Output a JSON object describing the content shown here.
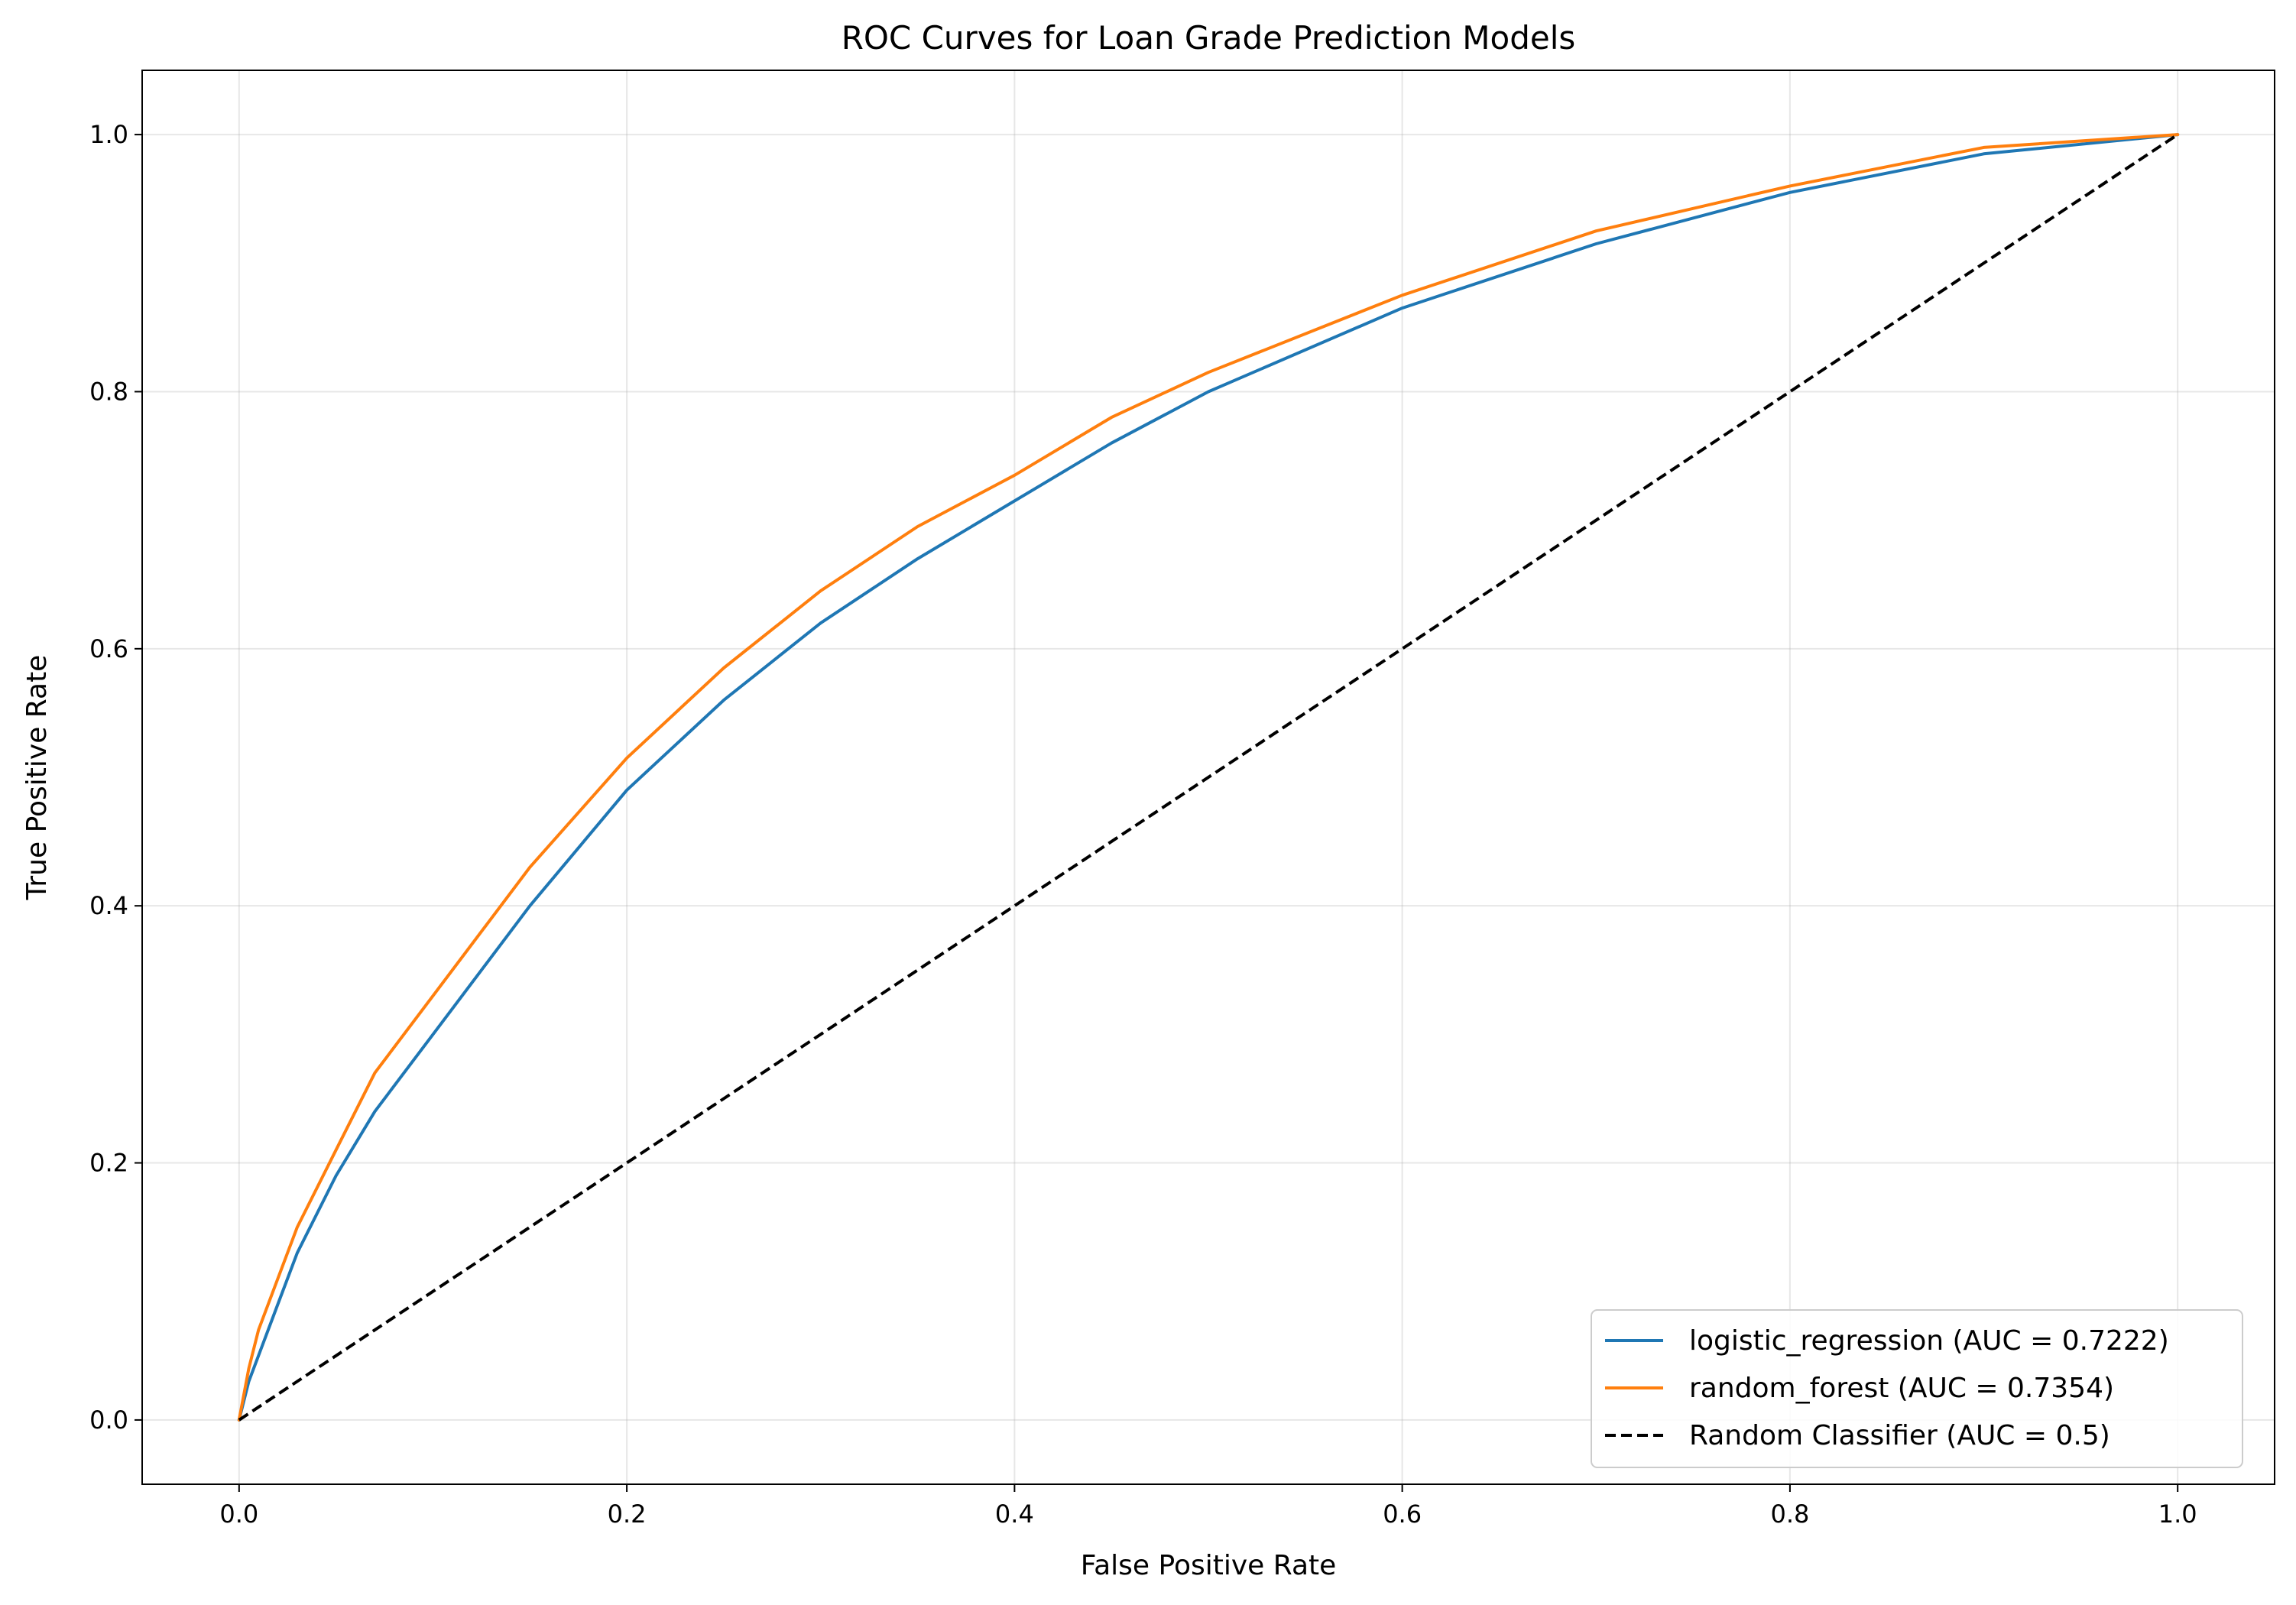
{
  "chart_data": {
    "type": "line",
    "title": "ROC Curves for Loan Grade Prediction Models",
    "xlabel": "False Positive Rate",
    "ylabel": "True Positive Rate",
    "xlim": [
      -0.05,
      1.05
    ],
    "ylim": [
      -0.05,
      1.05
    ],
    "xticks": [
      0.0,
      0.2,
      0.4,
      0.6,
      0.8,
      1.0
    ],
    "xtick_labels": [
      "0.0",
      "0.2",
      "0.4",
      "0.6",
      "0.8",
      "1.0"
    ],
    "yticks": [
      0.0,
      0.2,
      0.4,
      0.6,
      0.8,
      1.0
    ],
    "ytick_labels": [
      "0.0",
      "0.2",
      "0.4",
      "0.6",
      "0.8",
      "1.0"
    ],
    "grid": true,
    "legend_position": "lower-right",
    "series": [
      {
        "name": "logistic_regression (AUC = 0.7222)",
        "color": "#1f77b4",
        "style": "solid",
        "x": [
          0,
          0.005,
          0.01,
          0.02,
          0.03,
          0.05,
          0.07,
          0.1,
          0.15,
          0.2,
          0.25,
          0.3,
          0.35,
          0.4,
          0.45,
          0.5,
          0.6,
          0.7,
          0.8,
          0.9,
          1.0
        ],
        "y": [
          0,
          0.03,
          0.05,
          0.09,
          0.13,
          0.19,
          0.24,
          0.3,
          0.4,
          0.49,
          0.56,
          0.62,
          0.67,
          0.715,
          0.76,
          0.8,
          0.865,
          0.915,
          0.955,
          0.985,
          1.0
        ]
      },
      {
        "name": "random_forest (AUC = 0.7354)",
        "color": "#ff7f0e",
        "style": "solid",
        "x": [
          0,
          0.005,
          0.01,
          0.02,
          0.03,
          0.05,
          0.07,
          0.1,
          0.15,
          0.2,
          0.25,
          0.3,
          0.35,
          0.4,
          0.45,
          0.5,
          0.6,
          0.7,
          0.8,
          0.9,
          1.0
        ],
        "y": [
          0,
          0.04,
          0.07,
          0.11,
          0.15,
          0.21,
          0.27,
          0.33,
          0.43,
          0.515,
          0.585,
          0.645,
          0.695,
          0.735,
          0.78,
          0.815,
          0.875,
          0.925,
          0.96,
          0.99,
          1.0
        ]
      },
      {
        "name": "Random Classifier (AUC = 0.5)",
        "color": "#000000",
        "style": "dashed",
        "x": [
          0,
          1
        ],
        "y": [
          0,
          1
        ]
      }
    ]
  }
}
